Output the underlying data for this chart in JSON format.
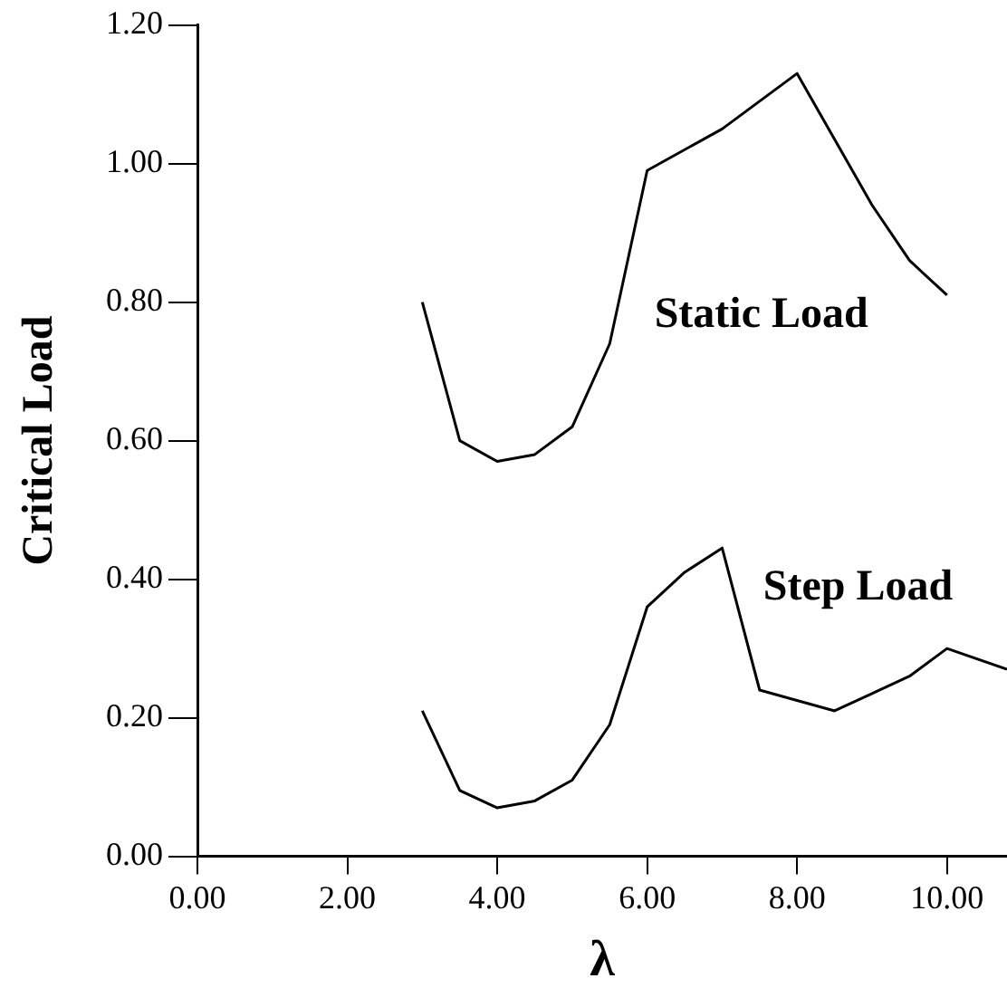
{
  "chart_data": {
    "type": "line",
    "xlabel": "λ",
    "ylabel": "Critical Load",
    "xlim": [
      0,
      10.8
    ],
    "xticks": [
      {
        "value": 0,
        "label": "0.00"
      },
      {
        "value": 2,
        "label": "2.00"
      },
      {
        "value": 4,
        "label": "4.00"
      },
      {
        "value": 6,
        "label": "6.00"
      },
      {
        "value": 8,
        "label": "8.00"
      },
      {
        "value": 10,
        "label": "10.00"
      }
    ],
    "ylim": [
      0,
      1.2
    ],
    "yticks": [
      {
        "value": 0,
        "label": "0.00"
      },
      {
        "value": 0.2,
        "label": "0.20"
      },
      {
        "value": 0.4,
        "label": "0.40"
      },
      {
        "value": 0.6,
        "label": "0.60"
      },
      {
        "value": 0.8,
        "label": "0.80"
      },
      {
        "value": 1,
        "label": "1.00"
      },
      {
        "value": 1.2,
        "label": "1.20"
      }
    ],
    "grid": false,
    "legend": false,
    "marker": "none",
    "line_style": "solid",
    "series": [
      {
        "name": "Static Load",
        "color": "#000000",
        "x": [
          3,
          3.5,
          4,
          4.5,
          5,
          5.5,
          6,
          7,
          8,
          9,
          9.5,
          10
        ],
        "values": [
          0.8,
          0.6,
          0.57,
          0.58,
          0.62,
          0.74,
          0.99,
          1.05,
          1.13,
          0.94,
          0.86,
          0.81
        ]
      },
      {
        "name": "Step Load",
        "color": "#000000",
        "x": [
          3,
          3.5,
          4,
          4.5,
          5,
          5.5,
          6,
          6.5,
          7,
          7.5,
          8.5,
          9,
          9.5,
          10,
          10.8
        ],
        "values": [
          0.21,
          0.095,
          0.07,
          0.08,
          0.11,
          0.19,
          0.36,
          0.41,
          0.445,
          0.24,
          0.21,
          0.235,
          0.26,
          0.3,
          0.27
        ]
      }
    ]
  }
}
